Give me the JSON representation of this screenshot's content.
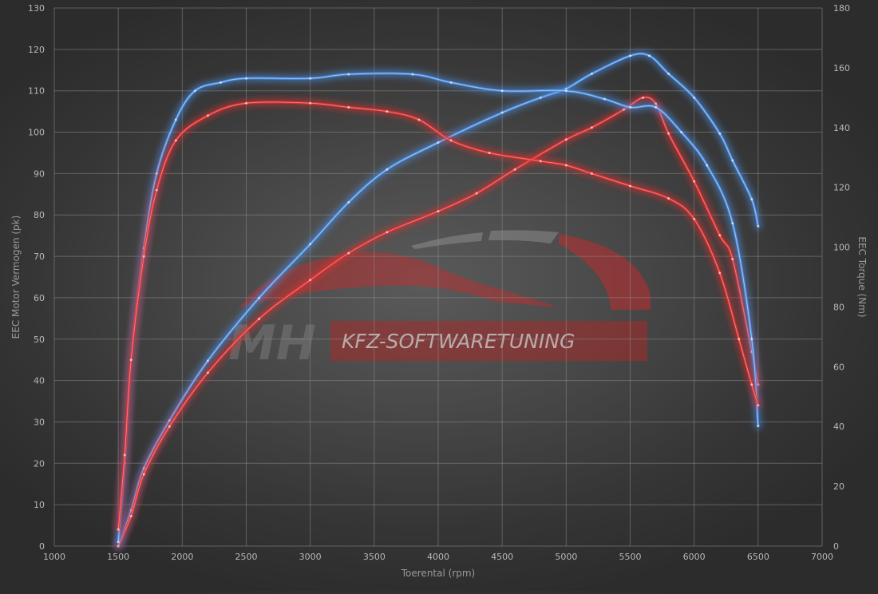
{
  "chart_data": {
    "type": "line",
    "xlabel": "Toerental (rpm)",
    "ylabel_left": "EEC Motor Vermogen (pk)",
    "ylabel_right": "EEC Torque (Nm)",
    "xlim": [
      1000,
      7000
    ],
    "ylim_left": [
      0,
      130
    ],
    "ylim_right": [
      0,
      180
    ],
    "x_ticks": [
      1000,
      1500,
      2000,
      2500,
      3000,
      3500,
      4000,
      4500,
      5000,
      5500,
      6000,
      6500,
      7000
    ],
    "y_ticks_left": [
      0,
      10,
      20,
      30,
      40,
      50,
      60,
      70,
      80,
      90,
      100,
      110,
      120,
      130
    ],
    "y_ticks_right": [
      0,
      20,
      40,
      60,
      80,
      100,
      120,
      140,
      160,
      180
    ],
    "grid": true,
    "series": [
      {
        "axis": "right",
        "color": "#4a90e8",
        "points": [
          [
            1500,
            0
          ],
          [
            1600,
            12
          ],
          [
            1700,
            26
          ],
          [
            1900,
            42
          ],
          [
            2200,
            62
          ],
          [
            2600,
            83
          ],
          [
            3000,
            101
          ],
          [
            3300,
            115
          ],
          [
            3600,
            126
          ],
          [
            4000,
            135
          ],
          [
            4500,
            145
          ],
          [
            4800,
            150
          ],
          [
            5000,
            153
          ],
          [
            5200,
            158
          ],
          [
            5500,
            164
          ],
          [
            5650,
            164
          ],
          [
            5800,
            158
          ],
          [
            6000,
            150
          ],
          [
            6200,
            138
          ],
          [
            6300,
            129
          ],
          [
            6450,
            116
          ],
          [
            6500,
            107
          ]
        ]
      },
      {
        "axis": "right",
        "color": "#e03030",
        "points": [
          [
            1500,
            0
          ],
          [
            1600,
            10
          ],
          [
            1700,
            24
          ],
          [
            1900,
            40
          ],
          [
            2200,
            58
          ],
          [
            2600,
            76
          ],
          [
            3000,
            89
          ],
          [
            3300,
            98
          ],
          [
            3600,
            105
          ],
          [
            4000,
            112
          ],
          [
            4300,
            118
          ],
          [
            4600,
            126
          ],
          [
            5000,
            136
          ],
          [
            5200,
            140
          ],
          [
            5450,
            146
          ],
          [
            5600,
            150
          ],
          [
            5700,
            148
          ],
          [
            5800,
            138
          ],
          [
            6000,
            122
          ],
          [
            6200,
            104
          ],
          [
            6300,
            96
          ],
          [
            6450,
            65
          ],
          [
            6500,
            54
          ]
        ]
      },
      {
        "axis": "left",
        "color": "#4a90e8",
        "points": [
          [
            1500,
            1
          ],
          [
            1550,
            20
          ],
          [
            1600,
            45
          ],
          [
            1700,
            72
          ],
          [
            1800,
            90
          ],
          [
            1950,
            103
          ],
          [
            2100,
            110
          ],
          [
            2300,
            112
          ],
          [
            2500,
            113
          ],
          [
            3000,
            113
          ],
          [
            3300,
            114
          ],
          [
            3800,
            114
          ],
          [
            4100,
            112
          ],
          [
            4500,
            110
          ],
          [
            5000,
            110
          ],
          [
            5300,
            108
          ],
          [
            5500,
            106
          ],
          [
            5700,
            106
          ],
          [
            5900,
            100
          ],
          [
            6100,
            92
          ],
          [
            6300,
            78
          ],
          [
            6450,
            50
          ],
          [
            6500,
            29
          ]
        ]
      },
      {
        "axis": "left",
        "color": "#e03030",
        "points": [
          [
            1500,
            4
          ],
          [
            1550,
            22
          ],
          [
            1600,
            45
          ],
          [
            1700,
            70
          ],
          [
            1800,
            86
          ],
          [
            1950,
            98
          ],
          [
            2200,
            104
          ],
          [
            2500,
            107
          ],
          [
            3000,
            107
          ],
          [
            3300,
            106
          ],
          [
            3600,
            105
          ],
          [
            3850,
            103
          ],
          [
            4100,
            98
          ],
          [
            4400,
            95
          ],
          [
            4800,
            93
          ],
          [
            5000,
            92
          ],
          [
            5200,
            90
          ],
          [
            5500,
            87
          ],
          [
            5800,
            84
          ],
          [
            6000,
            79
          ],
          [
            6200,
            66
          ],
          [
            6350,
            50
          ],
          [
            6450,
            39
          ],
          [
            6500,
            34
          ]
        ]
      }
    ]
  },
  "logo": {
    "mh": "MH",
    "kfz": "KFZ-SOFTWARETUNING"
  }
}
